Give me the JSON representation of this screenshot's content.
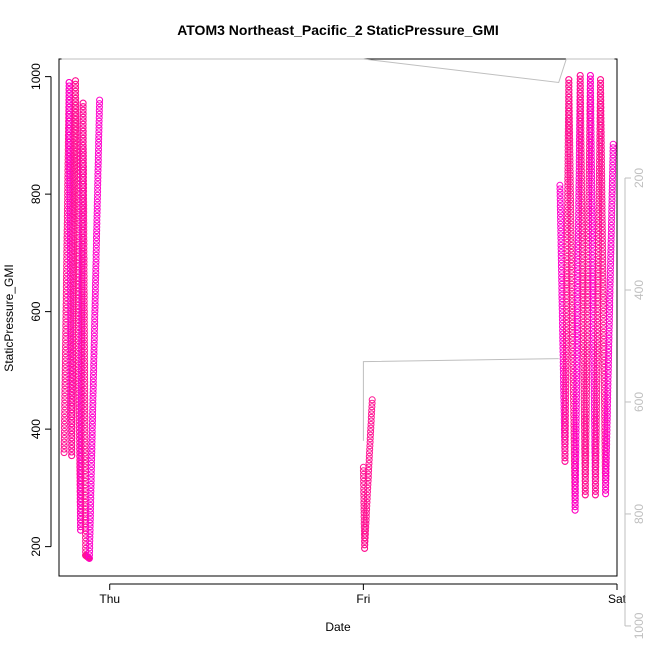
{
  "chart_data": {
    "type": "scatter",
    "title": "ATOM3 Northeast_Pacific_2 StaticPressure_GMI",
    "xlabel": "Date",
    "ylabel": "StaticPressure_GMI",
    "xlim": [
      -0.2,
      2.0
    ],
    "ylim": [
      150,
      1030
    ],
    "x_ticks": [
      {
        "value": 0,
        "label": "Thu"
      },
      {
        "value": 1,
        "label": "Fri"
      },
      {
        "value": 2,
        "label": "Sat"
      }
    ],
    "y_ticks": [
      200,
      400,
      600,
      800,
      1000
    ],
    "right_axis": {
      "ticks": [
        200,
        400,
        600,
        800,
        1000
      ],
      "scale": "reversed",
      "color": "#bfbfbf",
      "map_y0": 1018,
      "map_slope": -0.953
    },
    "grid": false,
    "legend": "none",
    "marker": "open-circle",
    "series_colors": {
      "pressure": "#ff1493",
      "profile_variant": "#ff00cc",
      "altitude_line": "#bfbfbf"
    },
    "profiles": [
      {
        "t0": -0.18,
        "t1": -0.16,
        "p0": 360,
        "p1": 990
      },
      {
        "t0": -0.16,
        "t1": -0.15,
        "p0": 990,
        "p1": 355
      },
      {
        "t0": -0.15,
        "t1": -0.135,
        "p0": 355,
        "p1": 993
      },
      {
        "t0": -0.135,
        "t1": -0.115,
        "p0": 993,
        "p1": 228
      },
      {
        "t0": -0.115,
        "t1": -0.105,
        "p0": 228,
        "p1": 955
      },
      {
        "t0": -0.105,
        "t1": -0.095,
        "p0": 955,
        "p1": 185
      },
      {
        "t0": -0.095,
        "t1": -0.08,
        "p0": 185,
        "p1": 180
      },
      {
        "t0": -0.08,
        "t1": -0.04,
        "p0": 180,
        "p1": 960
      },
      {
        "t0": 1.0,
        "t1": 1.005,
        "p0": 335,
        "p1": 197
      },
      {
        "t0": 1.005,
        "t1": 1.035,
        "p0": 197,
        "p1": 450
      },
      {
        "t0": 1.775,
        "t1": 1.795,
        "p0": 815,
        "p1": 345
      },
      {
        "t0": 1.795,
        "t1": 1.81,
        "p0": 345,
        "p1": 995
      },
      {
        "t0": 1.81,
        "t1": 1.835,
        "p0": 995,
        "p1": 262
      },
      {
        "t0": 1.835,
        "t1": 1.855,
        "p0": 262,
        "p1": 1002
      },
      {
        "t0": 1.855,
        "t1": 1.875,
        "p0": 1002,
        "p1": 288
      },
      {
        "t0": 1.875,
        "t1": 1.895,
        "p0": 288,
        "p1": 1002
      },
      {
        "t0": 1.895,
        "t1": 1.915,
        "p0": 1002,
        "p1": 288
      },
      {
        "t0": 1.915,
        "t1": 1.935,
        "p0": 288,
        "p1": 995
      },
      {
        "t0": 1.935,
        "t1": 1.955,
        "p0": 995,
        "p1": 290
      },
      {
        "t0": 1.955,
        "t1": 1.985,
        "p0": 290,
        "p1": 885
      }
    ],
    "altitude_line": [
      {
        "t": -0.19,
        "p": 1060
      },
      {
        "t": -0.15,
        "p": 1060
      },
      {
        "t": -0.1,
        "p": 1060
      },
      {
        "t": -0.05,
        "p": 1060
      },
      {
        "t": 0.3,
        "p": 1060
      },
      {
        "t": 1.0,
        "p": 1060
      },
      {
        "t": 1.77,
        "p": 990
      },
      {
        "t": 1.8,
        "p": 1060
      },
      {
        "t": 1.83,
        "p": 1060
      },
      {
        "t": 1.86,
        "p": 1060
      },
      {
        "t": 1.9,
        "p": 1060
      },
      {
        "t": 1.93,
        "p": 1060
      },
      {
        "t": 1.96,
        "p": 1060
      },
      {
        "t": 1.99,
        "p": 1060
      }
    ],
    "altitude_segment_fri": [
      {
        "t": 1.0,
        "p": 380
      },
      {
        "t": 1.0,
        "p": 515
      },
      {
        "t": 1.77,
        "p": 520
      }
    ]
  }
}
